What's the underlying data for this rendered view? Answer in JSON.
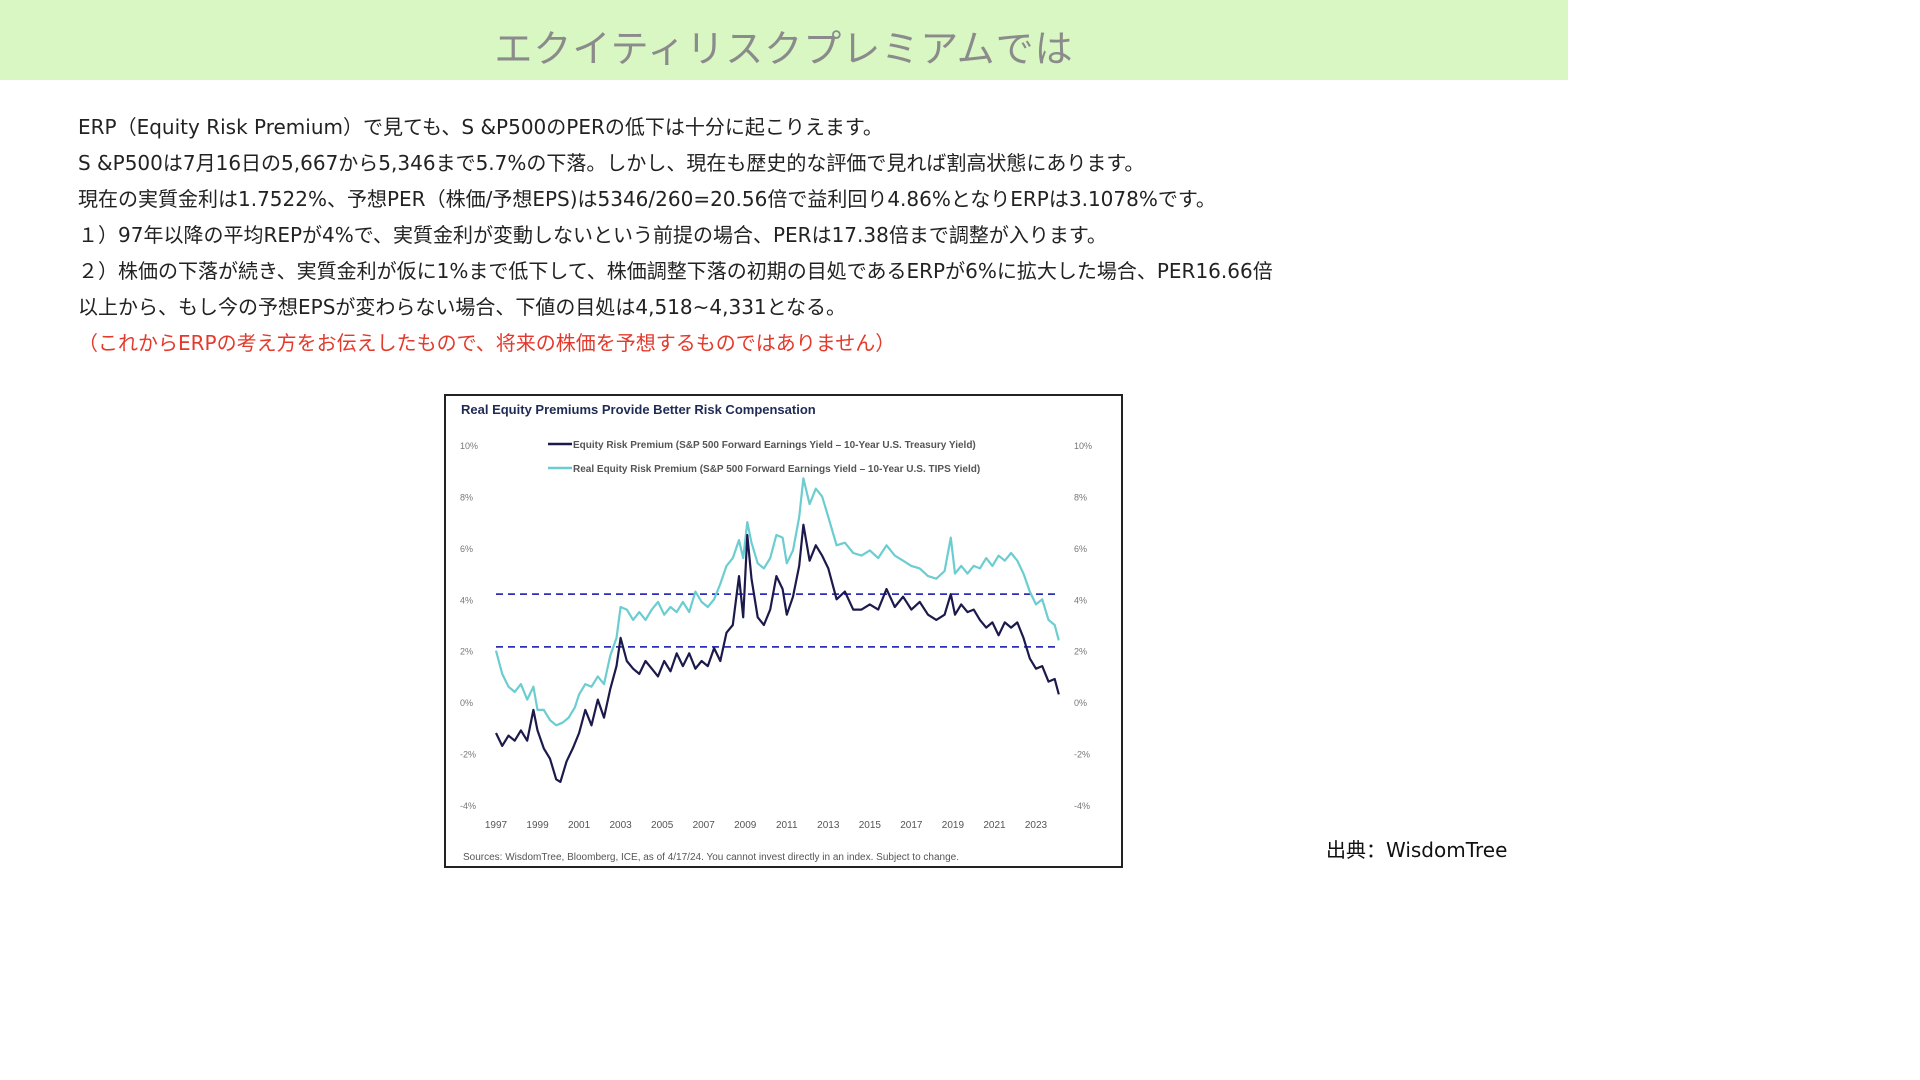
{
  "header": {
    "title": "エクイティリスクプレミアムでは"
  },
  "body": {
    "lines": [
      "ERP（Equity Risk Premium）で見ても、S &P500のPERの低下は十分に起こりえます。",
      "S &P500は7月16日の5,667から5,346まで5.7%の下落。しかし、現在も歴史的な評価で見れば割高状態にあります。",
      "現在の実質金利は1.7522%、予想PER（株価/予想EPS)は5346/260=20.56倍で益利回り4.86%となりERPは3.1078%です。",
      "１）97年以降の平均REPが4%で、実質金利が変動しないという前提の場合、PERは17.38倍まで調整が入ります。",
      "２）株価の下落が続き、実質金利が仮に1%まで低下して、株価調整下落の初期の目処であるERPが6%に拡大した場合、PER16.66倍",
      "以上から、もし今の予想EPSが変わらない場合、下値の目処は4,518~4,331となる。"
    ],
    "disclaimer": "（これからERPの考え方をお伝えしたもので、将来の株価を予想するものではありません）"
  },
  "credit": "出典：WisdomTree",
  "colors": {
    "banner": "#d8f7c3",
    "erp": "#1b1a4b",
    "real_erp": "#6ccdd0",
    "ref_line": "#2e2fb8",
    "disclaimer": "#e33a2c"
  },
  "chart_data": {
    "type": "line",
    "title": "Real Equity Premiums Provide Better Risk Compensation",
    "source": "Sources: WisdomTree, Bloomberg, ICE, as of 4/17/24. You cannot invest directly in an index. Subject to change.",
    "ylim": [
      -4,
      10
    ],
    "yticks": [
      "10%",
      "8%",
      "6%",
      "4%",
      "2%",
      "0%",
      "-2%",
      "-4%"
    ],
    "yticks_values": [
      10,
      8,
      6,
      4,
      2,
      0,
      -2,
      -4
    ],
    "xlim": [
      1997,
      2024.3
    ],
    "xticks": [
      "1997",
      "1999",
      "2001",
      "2003",
      "2005",
      "2007",
      "2009",
      "2011",
      "2013",
      "2015",
      "2017",
      "2019",
      "2021",
      "2023"
    ],
    "legend_position": "top",
    "reference_lines": [
      4.2,
      2.15
    ],
    "series": [
      {
        "name": "Equity Risk Premium (S&P 500 Forward Earnings Yield – 10-Year U.S. Treasury Yield)",
        "color": "#1b1a4b",
        "points": [
          [
            1997.0,
            -1.2
          ],
          [
            1997.3,
            -1.7
          ],
          [
            1997.6,
            -1.3
          ],
          [
            1997.9,
            -1.5
          ],
          [
            1998.2,
            -1.1
          ],
          [
            1998.5,
            -1.5
          ],
          [
            1998.8,
            -0.3
          ],
          [
            1999.0,
            -1.1
          ],
          [
            1999.3,
            -1.8
          ],
          [
            1999.6,
            -2.2
          ],
          [
            1999.9,
            -3.0
          ],
          [
            2000.1,
            -3.1
          ],
          [
            2000.4,
            -2.3
          ],
          [
            2000.7,
            -1.8
          ],
          [
            2001.0,
            -1.2
          ],
          [
            2001.3,
            -0.3
          ],
          [
            2001.6,
            -0.9
          ],
          [
            2001.9,
            0.1
          ],
          [
            2002.2,
            -0.6
          ],
          [
            2002.5,
            0.5
          ],
          [
            2002.8,
            1.4
          ],
          [
            2003.0,
            2.5
          ],
          [
            2003.3,
            1.6
          ],
          [
            2003.6,
            1.3
          ],
          [
            2003.9,
            1.1
          ],
          [
            2004.2,
            1.6
          ],
          [
            2004.5,
            1.3
          ],
          [
            2004.8,
            1.0
          ],
          [
            2005.1,
            1.6
          ],
          [
            2005.4,
            1.2
          ],
          [
            2005.7,
            1.9
          ],
          [
            2006.0,
            1.4
          ],
          [
            2006.3,
            1.9
          ],
          [
            2006.6,
            1.3
          ],
          [
            2006.9,
            1.6
          ],
          [
            2007.2,
            1.4
          ],
          [
            2007.5,
            2.1
          ],
          [
            2007.8,
            1.6
          ],
          [
            2008.1,
            2.7
          ],
          [
            2008.4,
            3.0
          ],
          [
            2008.7,
            4.9
          ],
          [
            2008.9,
            3.3
          ],
          [
            2009.1,
            6.5
          ],
          [
            2009.3,
            4.8
          ],
          [
            2009.6,
            3.3
          ],
          [
            2009.9,
            3.0
          ],
          [
            2010.2,
            3.6
          ],
          [
            2010.5,
            4.9
          ],
          [
            2010.8,
            4.4
          ],
          [
            2011.0,
            3.4
          ],
          [
            2011.3,
            4.1
          ],
          [
            2011.6,
            5.3
          ],
          [
            2011.8,
            6.9
          ],
          [
            2012.1,
            5.5
          ],
          [
            2012.4,
            6.1
          ],
          [
            2012.7,
            5.7
          ],
          [
            2013.0,
            5.2
          ],
          [
            2013.4,
            4.0
          ],
          [
            2013.8,
            4.3
          ],
          [
            2014.2,
            3.6
          ],
          [
            2014.6,
            3.6
          ],
          [
            2015.0,
            3.8
          ],
          [
            2015.4,
            3.6
          ],
          [
            2015.8,
            4.4
          ],
          [
            2016.2,
            3.7
          ],
          [
            2016.6,
            4.1
          ],
          [
            2017.0,
            3.6
          ],
          [
            2017.4,
            3.9
          ],
          [
            2017.8,
            3.4
          ],
          [
            2018.2,
            3.2
          ],
          [
            2018.6,
            3.4
          ],
          [
            2018.9,
            4.2
          ],
          [
            2019.1,
            3.4
          ],
          [
            2019.4,
            3.8
          ],
          [
            2019.7,
            3.5
          ],
          [
            2020.0,
            3.6
          ],
          [
            2020.3,
            3.2
          ],
          [
            2020.6,
            2.9
          ],
          [
            2020.9,
            3.1
          ],
          [
            2021.2,
            2.6
          ],
          [
            2021.5,
            3.1
          ],
          [
            2021.8,
            2.9
          ],
          [
            2022.1,
            3.1
          ],
          [
            2022.4,
            2.5
          ],
          [
            2022.7,
            1.7
          ],
          [
            2023.0,
            1.3
          ],
          [
            2023.3,
            1.4
          ],
          [
            2023.6,
            0.8
          ],
          [
            2023.9,
            0.9
          ],
          [
            2024.1,
            0.3
          ]
        ]
      },
      {
        "name": "Real Equity Risk Premium (S&P 500 Forward Earnings Yield – 10-Year U.S. TIPS Yield)",
        "color": "#6ccdd0",
        "points": [
          [
            1997.0,
            2.0
          ],
          [
            1997.3,
            1.1
          ],
          [
            1997.6,
            0.6
          ],
          [
            1997.9,
            0.4
          ],
          [
            1998.2,
            0.7
          ],
          [
            1998.5,
            0.1
          ],
          [
            1998.8,
            0.6
          ],
          [
            1999.0,
            -0.3
          ],
          [
            1999.3,
            -0.3
          ],
          [
            1999.6,
            -0.7
          ],
          [
            1999.9,
            -0.9
          ],
          [
            2000.2,
            -0.8
          ],
          [
            2000.5,
            -0.6
          ],
          [
            2000.8,
            -0.2
          ],
          [
            2001.0,
            0.3
          ],
          [
            2001.3,
            0.7
          ],
          [
            2001.6,
            0.6
          ],
          [
            2001.9,
            1.0
          ],
          [
            2002.2,
            0.7
          ],
          [
            2002.5,
            1.8
          ],
          [
            2002.8,
            2.5
          ],
          [
            2003.0,
            3.7
          ],
          [
            2003.3,
            3.6
          ],
          [
            2003.6,
            3.2
          ],
          [
            2003.9,
            3.5
          ],
          [
            2004.2,
            3.2
          ],
          [
            2004.5,
            3.6
          ],
          [
            2004.8,
            3.9
          ],
          [
            2005.1,
            3.4
          ],
          [
            2005.4,
            3.7
          ],
          [
            2005.7,
            3.5
          ],
          [
            2006.0,
            3.9
          ],
          [
            2006.3,
            3.5
          ],
          [
            2006.6,
            4.3
          ],
          [
            2006.9,
            3.9
          ],
          [
            2007.2,
            3.7
          ],
          [
            2007.5,
            4.0
          ],
          [
            2007.8,
            4.6
          ],
          [
            2008.1,
            5.3
          ],
          [
            2008.4,
            5.6
          ],
          [
            2008.7,
            6.3
          ],
          [
            2008.9,
            5.6
          ],
          [
            2009.1,
            7.0
          ],
          [
            2009.3,
            6.2
          ],
          [
            2009.6,
            5.4
          ],
          [
            2009.9,
            5.2
          ],
          [
            2010.2,
            5.6
          ],
          [
            2010.5,
            6.5
          ],
          [
            2010.8,
            6.4
          ],
          [
            2011.0,
            5.4
          ],
          [
            2011.3,
            5.9
          ],
          [
            2011.6,
            7.2
          ],
          [
            2011.8,
            8.7
          ],
          [
            2012.1,
            7.7
          ],
          [
            2012.4,
            8.3
          ],
          [
            2012.7,
            8.0
          ],
          [
            2013.0,
            7.2
          ],
          [
            2013.4,
            6.1
          ],
          [
            2013.8,
            6.2
          ],
          [
            2014.2,
            5.8
          ],
          [
            2014.6,
            5.7
          ],
          [
            2015.0,
            5.9
          ],
          [
            2015.4,
            5.6
          ],
          [
            2015.8,
            6.1
          ],
          [
            2016.2,
            5.7
          ],
          [
            2016.6,
            5.5
          ],
          [
            2017.0,
            5.3
          ],
          [
            2017.4,
            5.2
          ],
          [
            2017.8,
            4.9
          ],
          [
            2018.2,
            4.8
          ],
          [
            2018.6,
            5.1
          ],
          [
            2018.9,
            6.4
          ],
          [
            2019.1,
            5.0
          ],
          [
            2019.4,
            5.3
          ],
          [
            2019.7,
            5.0
          ],
          [
            2020.0,
            5.3
          ],
          [
            2020.3,
            5.2
          ],
          [
            2020.6,
            5.6
          ],
          [
            2020.9,
            5.3
          ],
          [
            2021.2,
            5.7
          ],
          [
            2021.5,
            5.5
          ],
          [
            2021.8,
            5.8
          ],
          [
            2022.1,
            5.5
          ],
          [
            2022.4,
            5.0
          ],
          [
            2022.7,
            4.3
          ],
          [
            2023.0,
            3.8
          ],
          [
            2023.3,
            4.0
          ],
          [
            2023.6,
            3.2
          ],
          [
            2023.9,
            3.0
          ],
          [
            2024.1,
            2.4
          ]
        ]
      }
    ]
  }
}
